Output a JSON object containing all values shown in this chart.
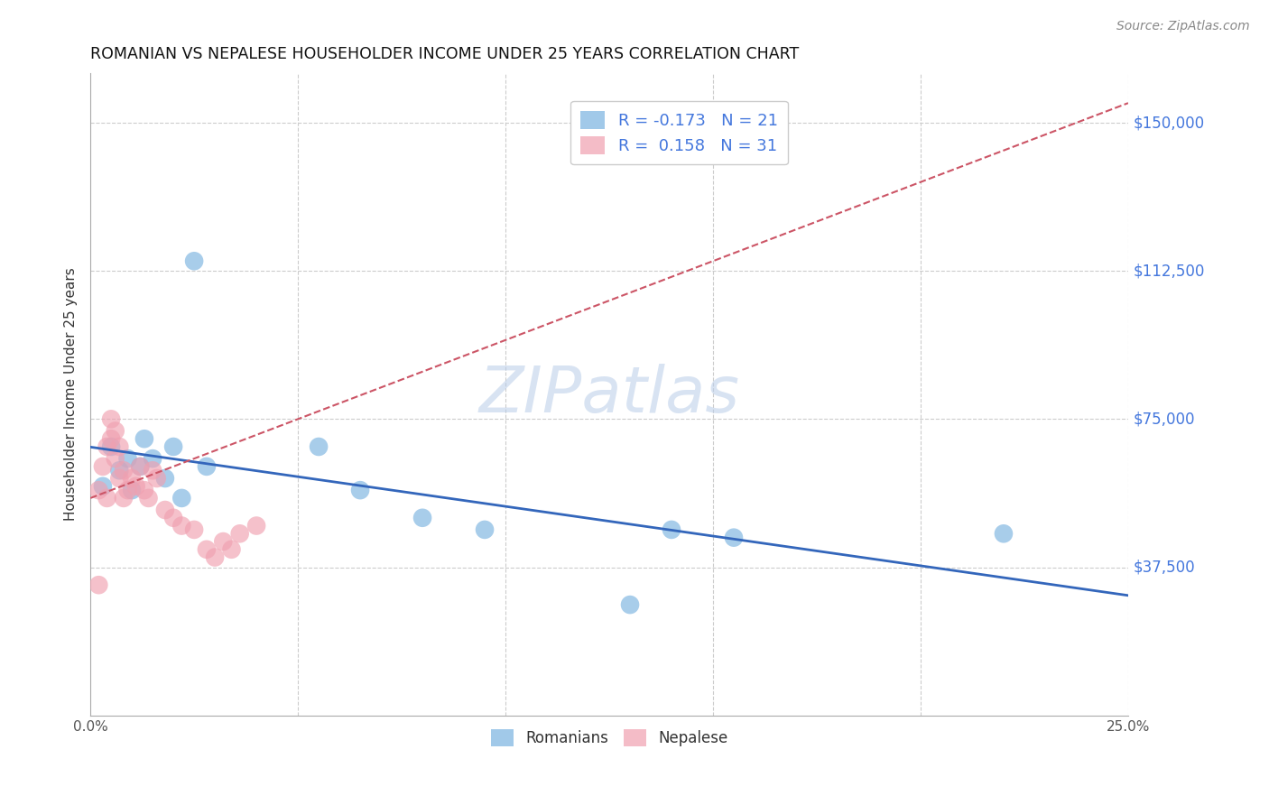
{
  "title": "ROMANIAN VS NEPALESE HOUSEHOLDER INCOME UNDER 25 YEARS CORRELATION CHART",
  "source": "Source: ZipAtlas.com",
  "ylabel": "Householder Income Under 25 years",
  "xlim": [
    0.0,
    0.25
  ],
  "ylim": [
    0,
    162500
  ],
  "yticks": [
    37500,
    75000,
    112500,
    150000
  ],
  "ytick_labels": [
    "$37,500",
    "$75,000",
    "$112,500",
    "$150,000"
  ],
  "xticks": [
    0.0,
    0.05,
    0.1,
    0.15,
    0.2,
    0.25
  ],
  "xtick_labels": [
    "0.0%",
    "",
    "",
    "",
    "",
    "25.0%"
  ],
  "romanian_color": "#7ab3e0",
  "nepalese_color": "#f0a0b0",
  "line_romanian_color": "#3366bb",
  "line_nepalese_color": "#cc5566",
  "background_color": "#ffffff",
  "grid_color": "#cccccc",
  "watermark": "ZIPatlas",
  "legend_color": "#4477dd",
  "romanians_x": [
    0.003,
    0.005,
    0.007,
    0.009,
    0.01,
    0.012,
    0.013,
    0.015,
    0.018,
    0.02,
    0.022,
    0.025,
    0.028,
    0.055,
    0.065,
    0.08,
    0.095,
    0.13,
    0.14,
    0.155,
    0.22
  ],
  "romanians_y": [
    58000,
    68000,
    62000,
    65000,
    57000,
    63000,
    70000,
    65000,
    60000,
    68000,
    55000,
    115000,
    63000,
    68000,
    57000,
    50000,
    47000,
    28000,
    47000,
    45000,
    46000
  ],
  "nepalese_x": [
    0.002,
    0.003,
    0.004,
    0.004,
    0.005,
    0.005,
    0.006,
    0.006,
    0.007,
    0.007,
    0.008,
    0.008,
    0.009,
    0.01,
    0.011,
    0.012,
    0.013,
    0.014,
    0.015,
    0.016,
    0.018,
    0.02,
    0.022,
    0.025,
    0.028,
    0.03,
    0.032,
    0.034,
    0.036,
    0.04,
    0.002
  ],
  "nepalese_y": [
    57000,
    63000,
    68000,
    55000,
    75000,
    70000,
    72000,
    65000,
    68000,
    60000,
    62000,
    55000,
    57000,
    60000,
    58000,
    63000,
    57000,
    55000,
    62000,
    60000,
    52000,
    50000,
    48000,
    47000,
    42000,
    40000,
    44000,
    42000,
    46000,
    48000,
    33000
  ],
  "nep_trend_x": [
    0.0,
    0.25
  ],
  "nep_trend_y": [
    55000,
    155000
  ],
  "rom_trend_x": [
    0.0,
    0.25
  ],
  "rom_trend_y": [
    62000,
    38000
  ]
}
